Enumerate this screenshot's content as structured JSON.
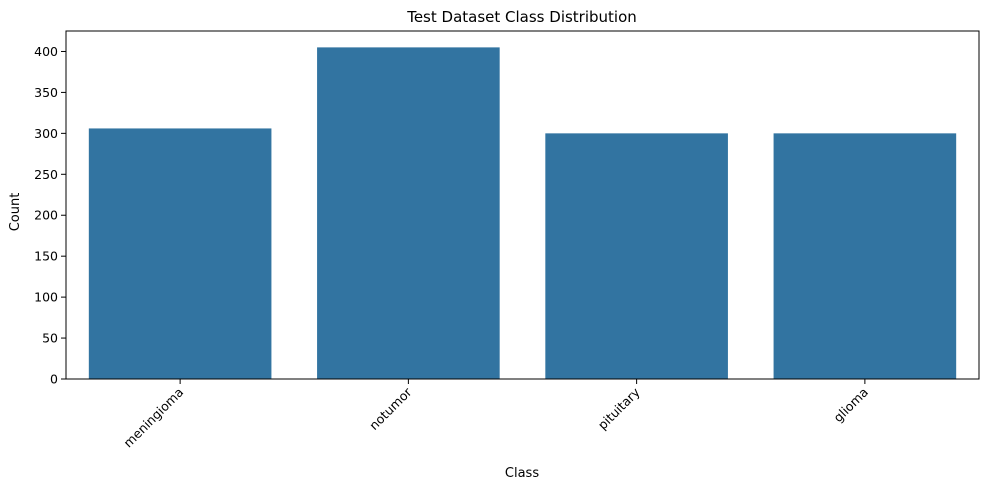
{
  "chart_data": {
    "type": "bar",
    "title": "Test Dataset Class Distribution",
    "xlabel": "Class",
    "ylabel": "Count",
    "categories": [
      "meningioma",
      "notumor",
      "pituitary",
      "glioma"
    ],
    "values": [
      306,
      405,
      300,
      300
    ],
    "ylim": [
      0,
      425
    ],
    "yticks": [
      0,
      50,
      100,
      150,
      200,
      250,
      300,
      350,
      400
    ],
    "bar_color": "#3274a1",
    "grid": false,
    "legend": "none",
    "xtick_rotation": "45 degrees"
  }
}
